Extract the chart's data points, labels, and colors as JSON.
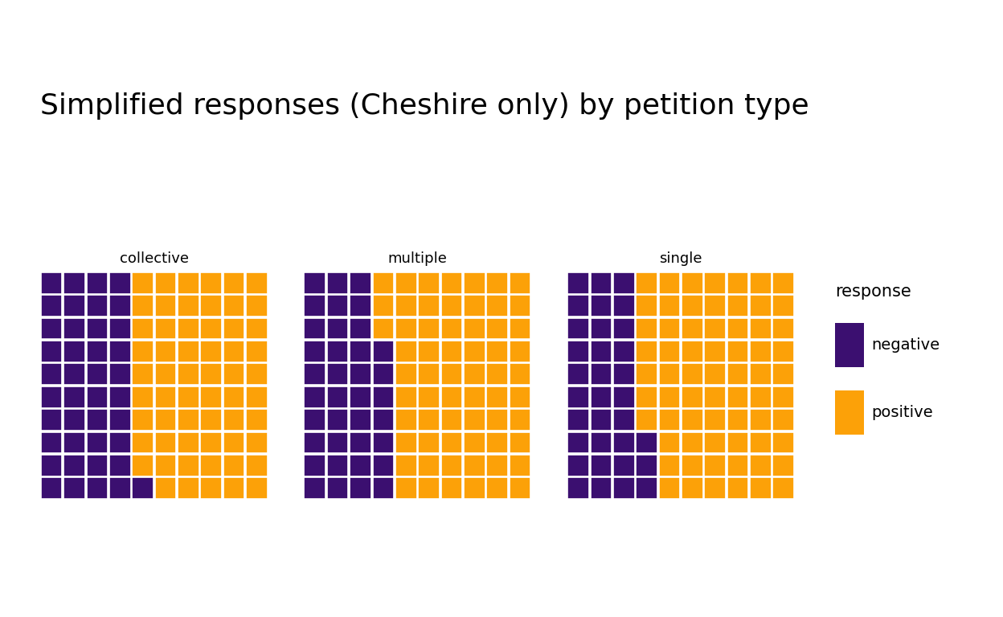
{
  "title": "Simplified responses (Cheshire only) by petition type",
  "panels": [
    {
      "label": "collective",
      "negative": 41,
      "positive": 59
    },
    {
      "label": "multiple",
      "negative": 37,
      "positive": 63
    },
    {
      "label": "single",
      "negative": 33,
      "positive": 67
    }
  ],
  "grid_size": 10,
  "color_negative": "#3B0F70",
  "color_positive": "#FCA108",
  "background_color": "#FFFFFF",
  "title_fontsize": 26,
  "label_fontsize": 13,
  "legend_fontsize": 14,
  "legend_title": "response",
  "legend_labels": [
    "negative",
    "positive"
  ]
}
